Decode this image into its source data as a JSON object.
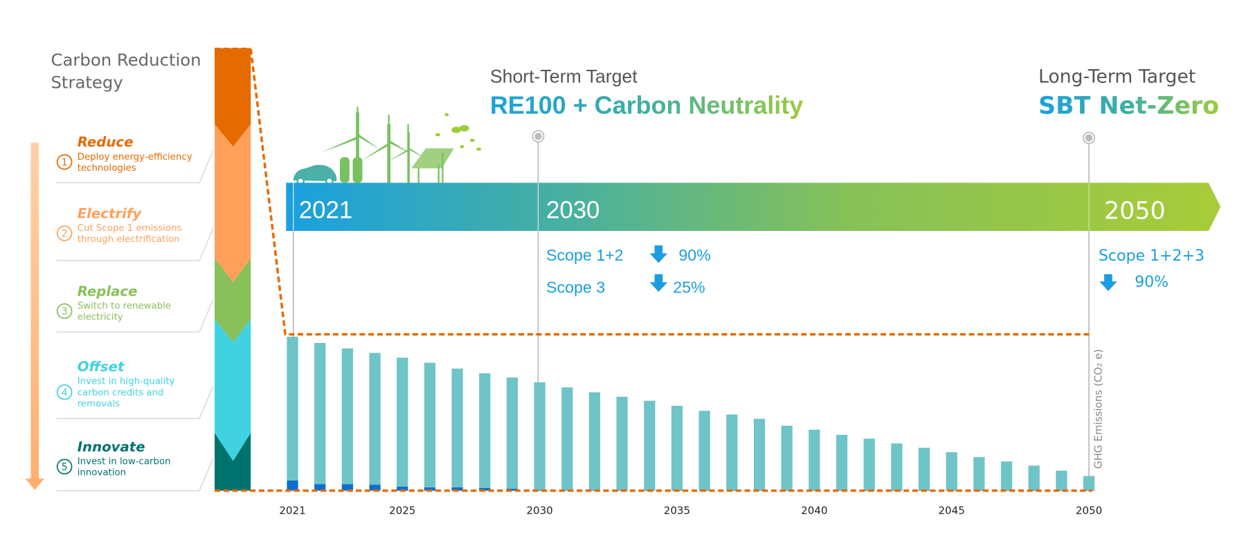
{
  "strategy": {
    "title_line1": "Carbon Reduction",
    "title_line2": "Strategy",
    "items": [
      {
        "num": "1",
        "title": "Reduce",
        "desc": [
          "Deploy energy-efficiency",
          "technologies"
        ],
        "color": "#e56a00"
      },
      {
        "num": "2",
        "title": "Electrify",
        "desc": [
          "Cut Scope 1 emissions",
          "through electrification"
        ],
        "color": "#ffa05a"
      },
      {
        "num": "3",
        "title": "Replace",
        "desc": [
          "Switch to renewable",
          "electricity"
        ],
        "color": "#88c05a"
      },
      {
        "num": "4",
        "title": "Offset",
        "desc": [
          "Invest in high-quality",
          "carbon credits and",
          "removals"
        ],
        "color": "#40d2e0"
      },
      {
        "num": "5",
        "title": "Innovate",
        "desc": [
          "Invest in low-carbon",
          "innovation"
        ],
        "color": "#00736e"
      }
    ]
  },
  "timeline": {
    "years": [
      "2021",
      "2030",
      "2050"
    ],
    "short_term": {
      "label": "Short-Term Target",
      "headline": "RE100 + Carbon Neutrality",
      "targets": [
        {
          "scope": "Scope 1+2",
          "value": "90%"
        },
        {
          "scope": "Scope 3",
          "value": "25%"
        }
      ]
    },
    "long_term": {
      "label": "Long-Term Target",
      "headline": "SBT Net-Zero",
      "targets": [
        {
          "scope": "Scope 1+2+3",
          "value": "90%"
        }
      ]
    },
    "colors": {
      "start": "#1aa0e0",
      "mid": "#6dbd72",
      "end": "#a8cc38",
      "text_blue": "#1a9ee0"
    }
  },
  "chart_data": {
    "type": "bar",
    "stacked": true,
    "ylabel": "GHG Emissions (CO₂ e)",
    "x": [
      2021,
      2022,
      2023,
      2024,
      2025,
      2026,
      2027,
      2028,
      2029,
      2030,
      2031,
      2032,
      2033,
      2034,
      2035,
      2036,
      2037,
      2038,
      2039,
      2040,
      2041,
      2042,
      2043,
      2044,
      2045,
      2046,
      2047,
      2048,
      2049,
      2050
    ],
    "tick_labels": [
      "2021",
      "2025",
      "2030",
      "2035",
      "2040",
      "2045",
      "2050"
    ],
    "series": [
      {
        "color": "#0a6fd0",
        "values": [
          6.7,
          4.3,
          4.3,
          3.9,
          2.7,
          2.2,
          2.2,
          1.8,
          1.3,
          0.5,
          0.3,
          0.3,
          0.3,
          0.3,
          0.3,
          0.3,
          0.3,
          0.3,
          0.3,
          0.3,
          0.3,
          0.3,
          0.3,
          0.3,
          0.3,
          0.3,
          0.3,
          0.3,
          0.3,
          0.3
        ]
      },
      {
        "color": "#6ec4c6",
        "values": [
          93.3,
          91.7,
          88.1,
          85.6,
          83.7,
          80.9,
          77.1,
          74.5,
          72.2,
          69.9,
          66.8,
          63.6,
          60.7,
          58.1,
          54.8,
          51.6,
          49.2,
          46.4,
          41.9,
          39.3,
          36.0,
          33.5,
          30.4,
          27.6,
          24.7,
          21.5,
          18.7,
          16.0,
          12.7,
          9.2
        ]
      }
    ],
    "ylim": [
      0,
      100
    ],
    "reference_line_color": "#e56a00",
    "grid": false,
    "legend": "none"
  }
}
